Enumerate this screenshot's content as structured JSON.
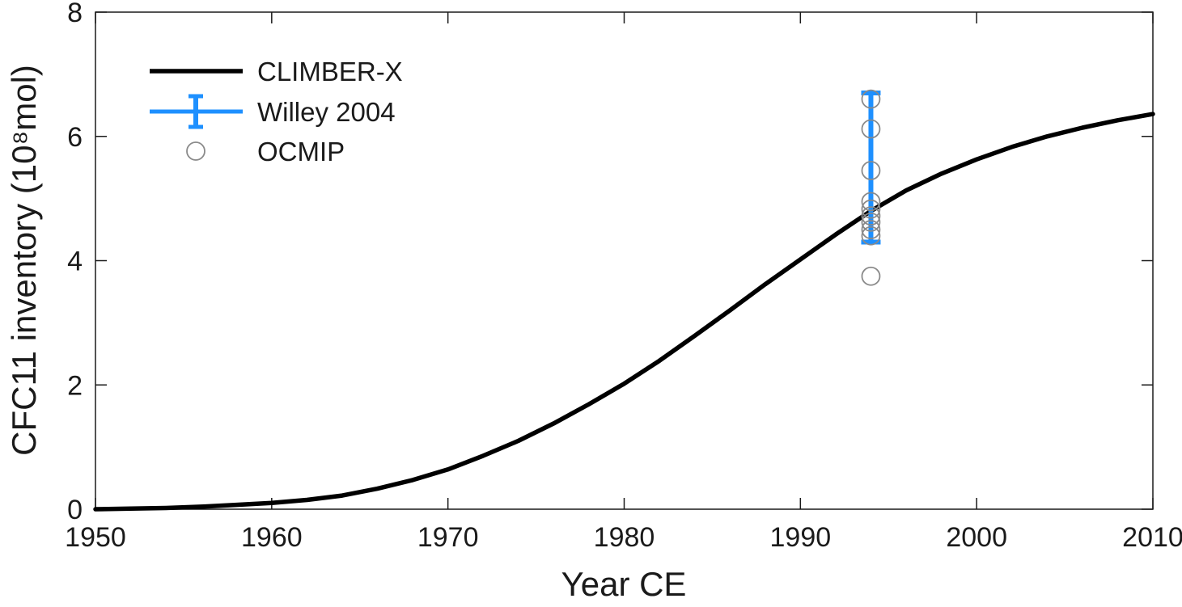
{
  "figure": {
    "background": "#ffffff",
    "legend_position": "top-left"
  },
  "chart_data": {
    "type": "line",
    "title": "",
    "xlabel": "Year CE",
    "ylabel": "CFC11 inventory (10⁸mol)",
    "xlim": [
      1950,
      2010
    ],
    "ylim": [
      0,
      8
    ],
    "xticks": [
      1950,
      1960,
      1970,
      1980,
      1990,
      2000,
      2010
    ],
    "yticks": [
      0,
      2,
      4,
      6,
      8
    ],
    "grid": false,
    "axis_color": "#1a1a1a",
    "legend_position": "top-left",
    "series": [
      {
        "name": "CLIMBER-X",
        "type": "line",
        "color": "#000000",
        "x": [
          1950,
          1952,
          1954,
          1956,
          1958,
          1960,
          1962,
          1964,
          1966,
          1968,
          1970,
          1972,
          1974,
          1976,
          1978,
          1980,
          1982,
          1984,
          1986,
          1988,
          1990,
          1992,
          1994,
          1996,
          1998,
          2000,
          2002,
          2004,
          2006,
          2008,
          2010
        ],
        "y": [
          0.0,
          0.01,
          0.02,
          0.04,
          0.07,
          0.1,
          0.15,
          0.22,
          0.33,
          0.47,
          0.64,
          0.86,
          1.1,
          1.38,
          1.69,
          2.02,
          2.39,
          2.79,
          3.2,
          3.62,
          4.02,
          4.42,
          4.8,
          5.13,
          5.4,
          5.63,
          5.83,
          6.0,
          6.14,
          6.26,
          6.36
        ]
      },
      {
        "name": "Willey 2004",
        "type": "errorbar",
        "color": "#1e90ff",
        "x": [
          1994
        ],
        "y": [
          5.5
        ],
        "yerr": [
          1.2
        ]
      },
      {
        "name": "OCMIP",
        "type": "scatter",
        "color": "#8a8a8a",
        "x": [
          1994,
          1994,
          1994,
          1994,
          1994,
          1994,
          1994,
          1994,
          1994,
          1994
        ],
        "y": [
          6.6,
          6.12,
          5.45,
          4.95,
          4.83,
          4.72,
          4.62,
          4.5,
          4.4,
          3.75
        ]
      }
    ]
  }
}
